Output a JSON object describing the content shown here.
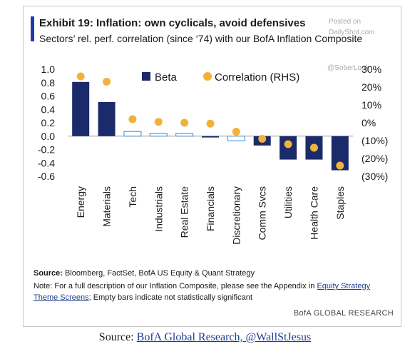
{
  "title": "Exhibit 19: Inflation: own cyclicals, avoid defensives",
  "subtitle": "Sectors’ rel. perf. correlation (since ‘74) with our BofA Inflation Composite",
  "watermarks": [
    "Posted on",
    "DailyShot.com",
    "@SoberLook"
  ],
  "colors": {
    "accent": "#1f3aa8",
    "beta": "#1b2a6b",
    "correlation": "#f0b23a",
    "empty_bar": "#5b9bd5"
  },
  "chart_data": {
    "type": "bar",
    "categories": [
      "Energy",
      "Materials",
      "Tech",
      "Industrials",
      "Real Estate",
      "Financials",
      "Discretionary",
      "Comm Svcs",
      "Utilities",
      "Health Care",
      "Staples"
    ],
    "series": [
      {
        "name": "Beta",
        "values": [
          0.81,
          0.51,
          0.07,
          0.04,
          0.04,
          -0.02,
          -0.07,
          -0.14,
          -0.35,
          -0.35,
          -0.51
        ],
        "significant": [
          true,
          true,
          false,
          false,
          false,
          true,
          false,
          true,
          true,
          true,
          true
        ],
        "axis": "left"
      },
      {
        "name": "Correlation (RHS)",
        "values": [
          26,
          23,
          2,
          0.5,
          0,
          -0.5,
          -5,
          -9,
          -12,
          -14,
          -24
        ],
        "axis": "right",
        "marker": "dot"
      }
    ],
    "left_axis": {
      "ylim": [
        -0.6,
        1.0
      ],
      "ticks": [
        1.0,
        0.8,
        0.6,
        0.4,
        0.2,
        0.0,
        -0.2,
        -0.4,
        -0.6
      ],
      "tick_labels": [
        "1.0",
        "0.8",
        "0.6",
        "0.4",
        "0.2",
        "0.0",
        "-0.2",
        "-0.4",
        "-0.6"
      ]
    },
    "right_axis": {
      "ylim": [
        -30,
        30
      ],
      "ticks": [
        30,
        20,
        10,
        0,
        -10,
        -20,
        -30
      ],
      "tick_labels": [
        "30%",
        "20%",
        "10%",
        "0%",
        "(10%)",
        "(20%)",
        "(30%)"
      ]
    },
    "legend": {
      "position": "top-center",
      "entries": [
        "Beta",
        "Correlation (RHS)"
      ]
    },
    "grid": false
  },
  "source_label": "Source:",
  "source_text": "Bloomberg, FactSet, BofA US Equity & Quant Strategy",
  "note_pre": "Note: For a full description of our Inflation Composite, please see the Appendix in",
  "note_link_a": "Equity Strategy",
  "note_link_b": "Theme Screens",
  "note_post": "; Empty bars indicate not statistically significant",
  "brand": "BofA GLOBAL RESEARCH",
  "caption_prefix": "Source: ",
  "caption_link": "BofA Global Research, @WallStJesus"
}
